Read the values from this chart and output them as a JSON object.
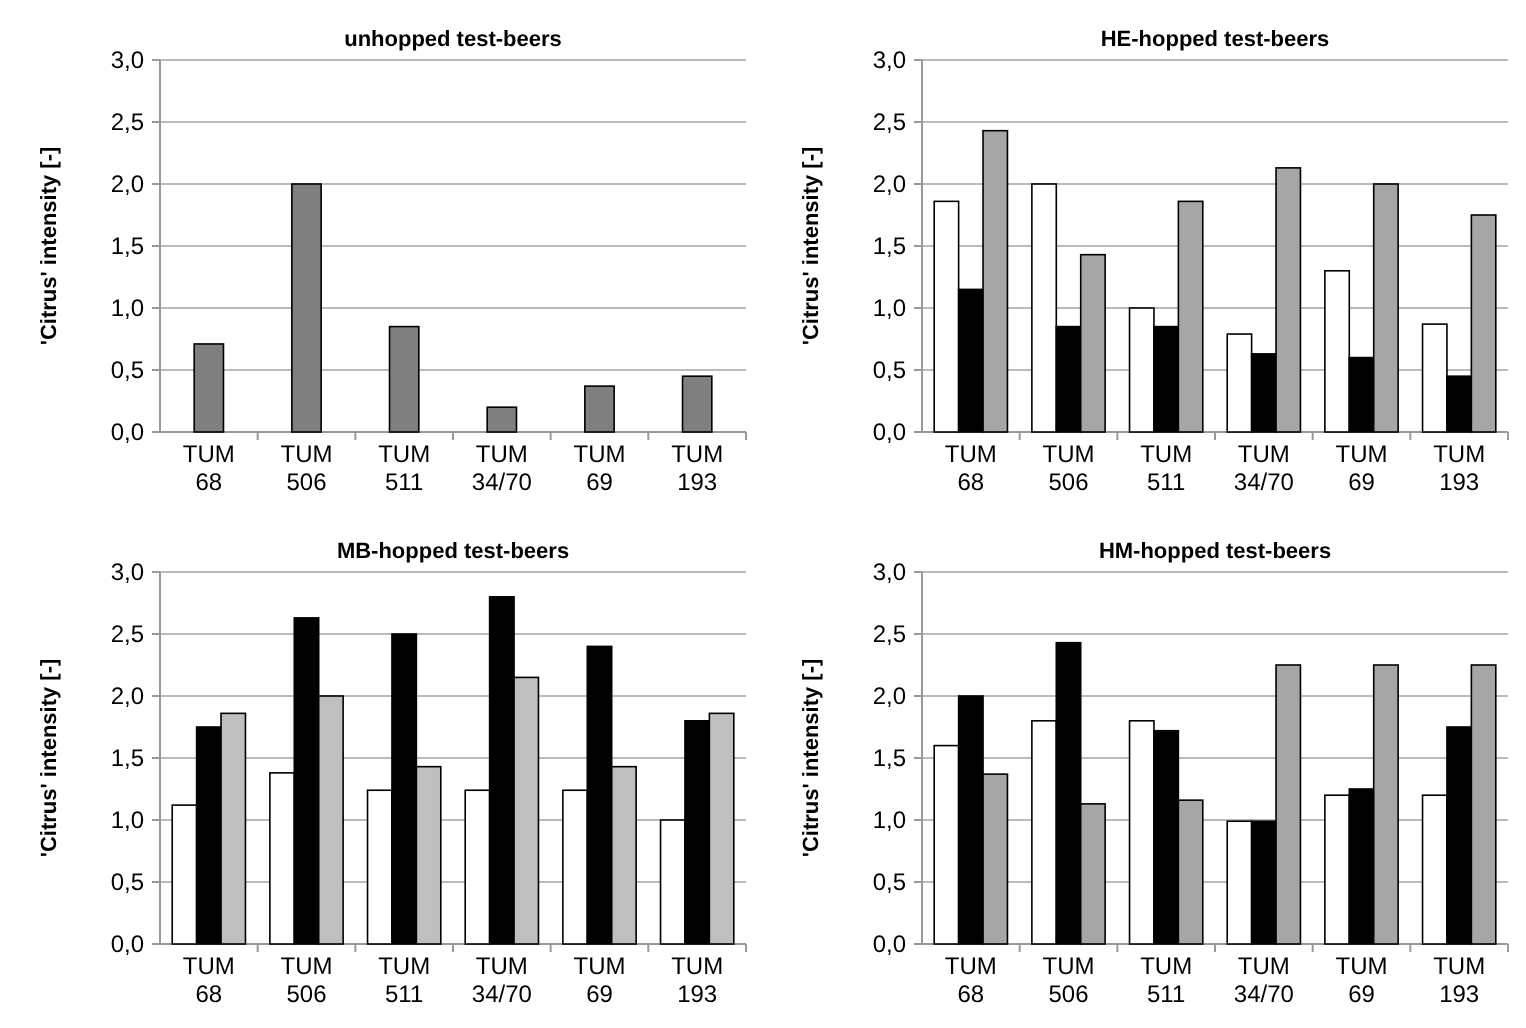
{
  "chart_data": [
    {
      "type": "bar",
      "title": "unhopped test-beers",
      "ylabel": "'Citrus' intensity [-]",
      "categories": [
        "TUM 68",
        "TUM 506",
        "TUM 511",
        "TUM 34/70",
        "TUM 69",
        "TUM 193"
      ],
      "series": [
        {
          "color": "#7f7f7f",
          "values": [
            0.71,
            2.0,
            0.85,
            0.2,
            0.37,
            0.45
          ]
        }
      ],
      "ylim": [
        0,
        3
      ],
      "yticks": [
        {
          "value": 0,
          "label": "0,0"
        },
        {
          "value": 0.5,
          "label": "0,5"
        },
        {
          "value": 1,
          "label": "1,0"
        },
        {
          "value": 1.5,
          "label": "1,5"
        },
        {
          "value": 2,
          "label": "2,0"
        },
        {
          "value": 2.5,
          "label": "2,5"
        },
        {
          "value": 3,
          "label": "3,0"
        }
      ],
      "grid": "y"
    },
    {
      "type": "bar",
      "title": "HE-hopped test-beers",
      "ylabel": "'Citrus' intensity [-]",
      "categories": [
        "TUM 68",
        "TUM 506",
        "TUM 511",
        "TUM 34/70",
        "TUM 69",
        "TUM 193"
      ],
      "series": [
        {
          "color": "#ffffff",
          "values": [
            1.86,
            2.0,
            1.0,
            0.79,
            1.3,
            0.87
          ]
        },
        {
          "color": "#000000",
          "values": [
            1.15,
            0.85,
            0.85,
            0.63,
            0.6,
            0.45
          ]
        },
        {
          "color": "#a6a6a6",
          "values": [
            2.43,
            1.43,
            1.86,
            2.13,
            2.0,
            1.75
          ]
        }
      ],
      "ylim": [
        0,
        3
      ],
      "yticks": [
        {
          "value": 0,
          "label": "0,0"
        },
        {
          "value": 0.5,
          "label": "0,5"
        },
        {
          "value": 1,
          "label": "1,0"
        },
        {
          "value": 1.5,
          "label": "1,5"
        },
        {
          "value": 2,
          "label": "2,0"
        },
        {
          "value": 2.5,
          "label": "2,5"
        },
        {
          "value": 3,
          "label": "3,0"
        }
      ],
      "grid": "y"
    },
    {
      "type": "bar",
      "title": "MB-hopped test-beers",
      "ylabel": "'Citrus' intensity [-]",
      "categories": [
        "TUM 68",
        "TUM 506",
        "TUM 511",
        "TUM 34/70",
        "TUM 69",
        "TUM 193"
      ],
      "series": [
        {
          "color": "#ffffff",
          "values": [
            1.12,
            1.38,
            1.24,
            1.24,
            1.24,
            1.0
          ]
        },
        {
          "color": "#000000",
          "values": [
            1.75,
            2.63,
            2.5,
            2.8,
            2.4,
            1.8
          ]
        },
        {
          "color": "#bfbfbf",
          "values": [
            1.86,
            2.0,
            1.43,
            2.15,
            1.43,
            1.86
          ]
        }
      ],
      "ylim": [
        0,
        3
      ],
      "yticks": [
        {
          "value": 0,
          "label": "0,0"
        },
        {
          "value": 0.5,
          "label": "0,5"
        },
        {
          "value": 1,
          "label": "1,0"
        },
        {
          "value": 1.5,
          "label": "1,5"
        },
        {
          "value": 2,
          "label": "2,0"
        },
        {
          "value": 2.5,
          "label": "2,5"
        },
        {
          "value": 3,
          "label": "3,0"
        }
      ],
      "grid": "y"
    },
    {
      "type": "bar",
      "title": "HM-hopped test-beers",
      "ylabel": "'Citrus' intensity [-]",
      "categories": [
        "TUM 68",
        "TUM 506",
        "TUM 511",
        "TUM 34/70",
        "TUM 69",
        "TUM 193"
      ],
      "series": [
        {
          "color": "#ffffff",
          "values": [
            1.6,
            1.8,
            1.8,
            0.99,
            1.2,
            1.2
          ]
        },
        {
          "color": "#000000",
          "values": [
            2.0,
            2.43,
            1.72,
            0.99,
            1.25,
            1.75
          ]
        },
        {
          "color": "#a6a6a6",
          "values": [
            1.37,
            1.13,
            1.16,
            2.25,
            2.25,
            2.25
          ]
        }
      ],
      "ylim": [
        0,
        3
      ],
      "yticks": [
        {
          "value": 0,
          "label": "0,0"
        },
        {
          "value": 0.5,
          "label": "0,5"
        },
        {
          "value": 1,
          "label": "1,0"
        },
        {
          "value": 1.5,
          "label": "1,5"
        },
        {
          "value": 2,
          "label": "2,0"
        },
        {
          "value": 2.5,
          "label": "2,5"
        },
        {
          "value": 3,
          "label": "3,0"
        }
      ],
      "grid": "y"
    }
  ]
}
